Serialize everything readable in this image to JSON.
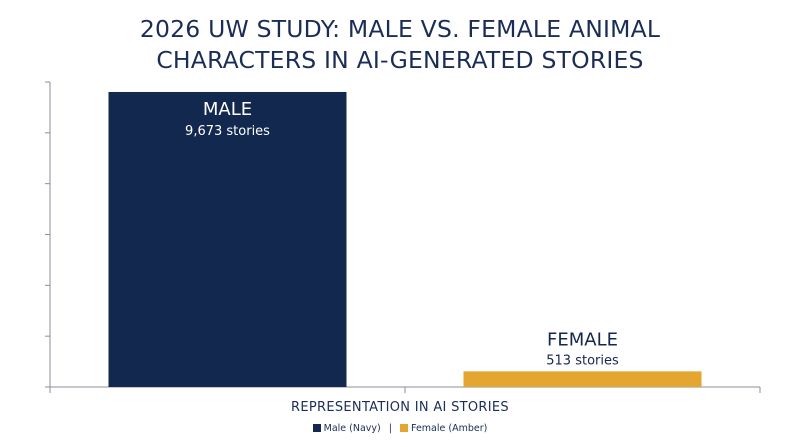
{
  "chart_data": {
    "type": "bar",
    "title_lines": [
      "2026 UW STUDY: MALE VS. FEMALE ANIMAL",
      "CHARACTERS IN AI-GENERATED STORIES"
    ],
    "xlabel": "REPRESENTATION IN AI STORIES",
    "ylabel": "",
    "categories": [
      "MALE",
      "FEMALE"
    ],
    "values": [
      9673,
      513
    ],
    "bar_labels": [
      "9,673 stories",
      "513 stories"
    ],
    "colors": [
      "#13284f",
      "#e5a531"
    ],
    "ylim": [
      0,
      10000
    ],
    "y_tick_count": 7,
    "grid": false,
    "legend_position": "bottom-center",
    "legend": [
      {
        "label": "Male (Navy)",
        "color": "#13284f"
      },
      {
        "label": "Female (Amber)",
        "color": "#e5a531"
      }
    ],
    "legend_separator": "|"
  }
}
